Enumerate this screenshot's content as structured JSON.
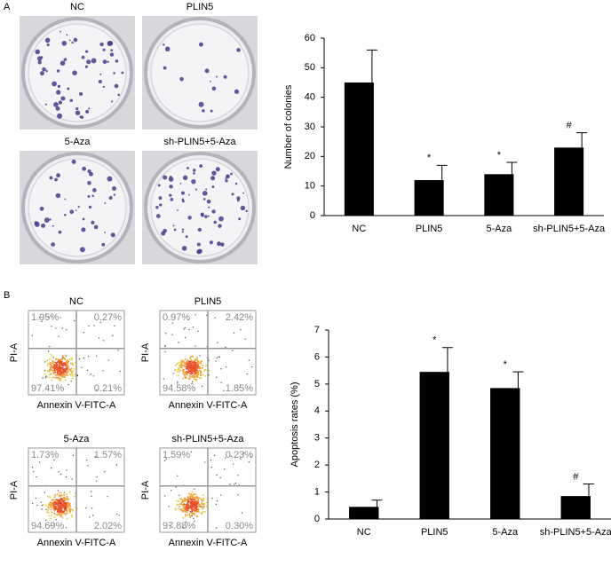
{
  "figure": {
    "panel_a": {
      "label": "A",
      "dishes": [
        "NC",
        "PLIN5",
        "5-Aza",
        "sh-PLIN5+5-Aza"
      ]
    },
    "panel_b": {
      "label": "B",
      "y_label": "PI-A",
      "x_label": "Annexin V-FITC-A",
      "plots": [
        {
          "title": "NC",
          "quadrants": [
            "1.95%",
            "0.27%",
            "97.41%",
            "0.21%"
          ]
        },
        {
          "title": "PLIN5",
          "quadrants": [
            "0.97%",
            "2.42%",
            "94.58%",
            "1.85%"
          ]
        },
        {
          "title": "5-Aza",
          "quadrants": [
            "1.73%",
            "1.57%",
            "94.69%",
            "2.02%"
          ]
        },
        {
          "title": "sh-PLIN5+5-Aza",
          "quadrants": [
            "1.59%",
            "0.23%",
            "97.88%",
            "0.30%"
          ]
        }
      ]
    }
  },
  "chart_data": [
    {
      "type": "bar",
      "y_label": "Number of colonies",
      "categories": [
        "NC",
        "PLIN5",
        "5-Aza",
        "sh-PLIN5+5-Aza"
      ],
      "values": [
        45,
        12,
        14,
        23
      ],
      "errors": [
        11,
        5,
        4,
        5
      ],
      "annotations": [
        null,
        "*",
        "*",
        "#"
      ],
      "color": "#000000",
      "ylim": [
        0,
        60
      ],
      "yticks": [
        0,
        10,
        20,
        30,
        40,
        50,
        60
      ]
    },
    {
      "type": "bar",
      "y_label": "Apoptosis rates (%)",
      "categories": [
        "NC",
        "PLIN5",
        "5-Aza",
        "sh-PLIN5+5-Aza"
      ],
      "values": [
        0.45,
        5.45,
        4.85,
        0.85
      ],
      "errors": [
        0.25,
        0.9,
        0.6,
        0.45
      ],
      "annotations": [
        null,
        "*",
        "*",
        "#"
      ],
      "color": "#000000",
      "ylim": [
        0,
        7
      ],
      "yticks": [
        0,
        1,
        2,
        3,
        4,
        5,
        6,
        7
      ]
    }
  ]
}
